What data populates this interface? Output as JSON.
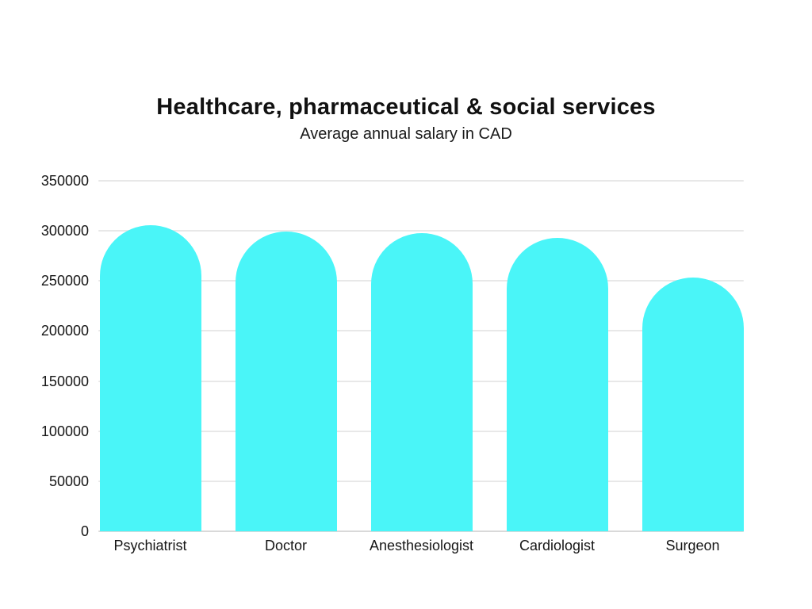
{
  "chart_data": {
    "type": "bar",
    "title": "Healthcare, pharmaceutical & social services",
    "subtitle": "Average annual salary in CAD",
    "categories": [
      "Psychiatrist",
      "Doctor",
      "Anesthesiologist",
      "Cardiologist",
      "Surgeon"
    ],
    "values": [
      306000,
      299000,
      298000,
      293000,
      253000
    ],
    "xlabel": "",
    "ylabel": "",
    "ylim": [
      0,
      350000
    ],
    "ytick_step": 50000,
    "ytick_labels": [
      "0",
      "50000",
      "100000",
      "150000",
      "200000",
      "250000",
      "300000",
      "350000"
    ],
    "grid": true,
    "legend": "none",
    "bar_color": "#4af5f8",
    "bar_shape": "rounded-top",
    "background_color": "#ffffff",
    "text_color": "#111111"
  }
}
